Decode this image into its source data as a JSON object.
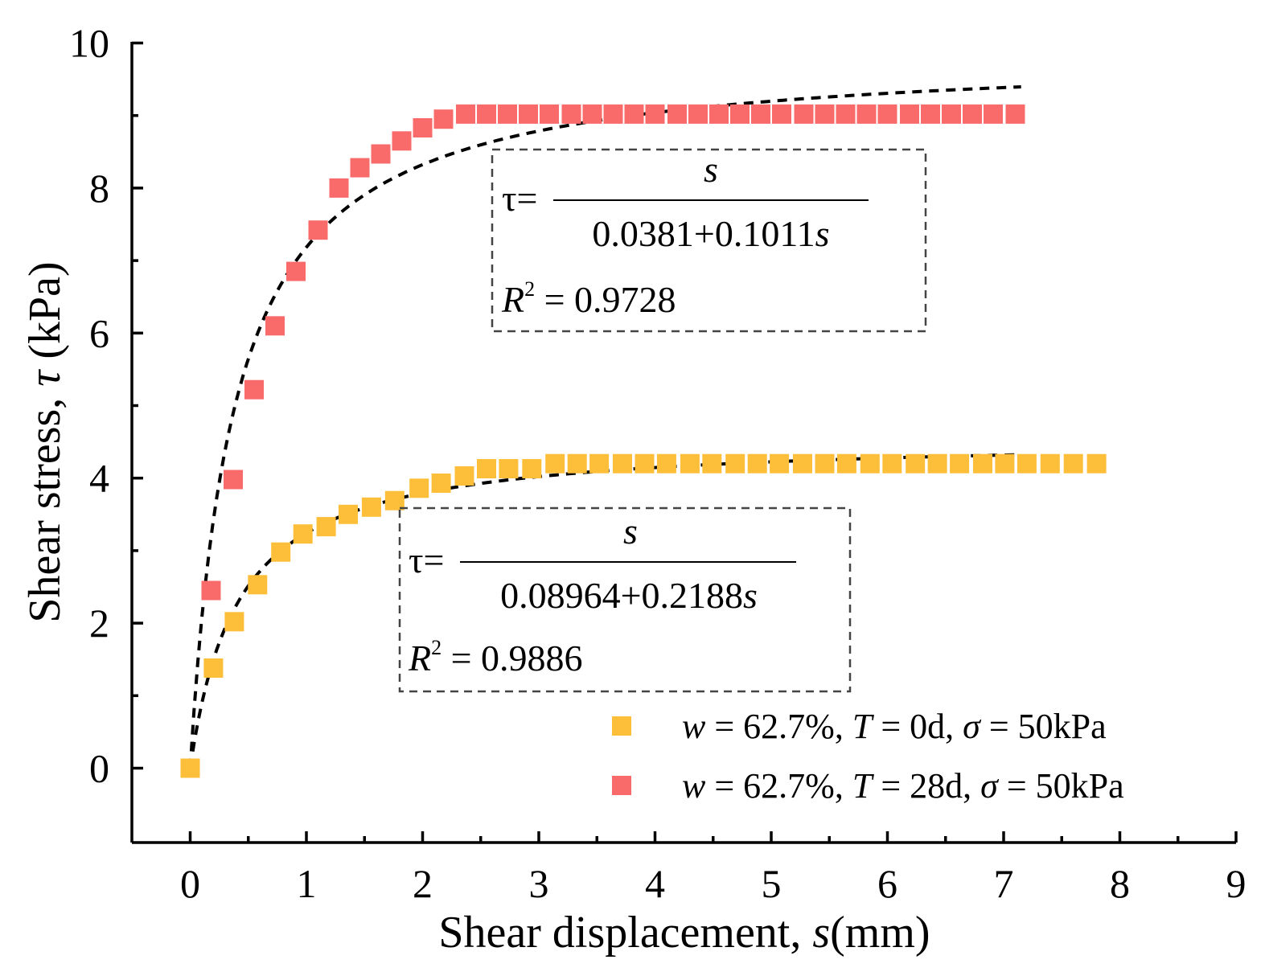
{
  "chart_data": {
    "type": "scatter",
    "xlabel_prefix": "Shear displacement, ",
    "xlabel_var": "s",
    "xlabel_unit": "(mm)",
    "ylabel_prefix": "Shear stress,  ",
    "ylabel_var": "τ",
    "ylabel_unit": " (kPa)",
    "xlim": [
      -0.5,
      9
    ],
    "ylim": [
      -1,
      10
    ],
    "xticks": [
      0,
      1,
      2,
      3,
      4,
      5,
      6,
      7,
      8,
      9
    ],
    "yticks": [
      0,
      2,
      4,
      6,
      8,
      10
    ],
    "series": [
      {
        "name": "T0",
        "legend": {
          "w": "w",
          "w_val": " = 62.7%, ",
          "T": "T",
          "T_val": " = 0d, ",
          "sigma": "σ",
          "sigma_val": " = 50kPa"
        },
        "color": "#FDBE3A",
        "x": [
          0,
          0.2,
          0.38,
          0.58,
          0.78,
          0.97,
          1.17,
          1.36,
          1.56,
          1.76,
          1.97,
          2.16,
          2.36,
          2.55,
          2.74,
          2.94,
          3.14,
          3.33,
          3.52,
          3.72,
          3.91,
          4.1,
          4.3,
          4.49,
          4.69,
          4.88,
          5.07,
          5.27,
          5.46,
          5.65,
          5.85,
          6.04,
          6.24,
          6.43,
          6.62,
          6.82,
          7.01,
          7.2,
          7.4,
          7.6,
          7.8
        ],
        "y": [
          0,
          1.38,
          2.02,
          2.53,
          2.98,
          3.23,
          3.33,
          3.5,
          3.6,
          3.69,
          3.86,
          3.93,
          4.03,
          4.13,
          4.13,
          4.13,
          4.2,
          4.2,
          4.2,
          4.2,
          4.2,
          4.2,
          4.2,
          4.2,
          4.2,
          4.2,
          4.2,
          4.2,
          4.2,
          4.2,
          4.2,
          4.2,
          4.2,
          4.2,
          4.2,
          4.2,
          4.2,
          4.2,
          4.2,
          4.2,
          4.2
        ],
        "fit": {
          "a": 0.08964,
          "b": 0.2188,
          "x_max": 7.15
        }
      },
      {
        "name": "T28",
        "legend": {
          "w": "w",
          "w_val": " = 62.7%, ",
          "T": "T",
          "T_val": " = 28d, ",
          "sigma": "σ",
          "sigma_val": " = 50kPa"
        },
        "color": "#F96B6B",
        "x": [
          0.18,
          0.37,
          0.55,
          0.73,
          0.91,
          1.1,
          1.28,
          1.46,
          1.64,
          1.82,
          2.0,
          2.18,
          2.37,
          2.55,
          2.73,
          2.91,
          3.09,
          3.28,
          3.46,
          3.64,
          3.82,
          4.0,
          4.19,
          4.37,
          4.55,
          4.73,
          4.91,
          5.09,
          5.28,
          5.46,
          5.64,
          5.82,
          6.0,
          6.19,
          6.37,
          6.55,
          6.73,
          6.91,
          7.1
        ],
        "y": [
          2.45,
          3.98,
          5.22,
          6.1,
          6.85,
          7.42,
          8.0,
          8.28,
          8.47,
          8.65,
          8.83,
          8.95,
          9.02,
          9.02,
          9.02,
          9.02,
          9.02,
          9.02,
          9.02,
          9.02,
          9.02,
          9.02,
          9.02,
          9.02,
          9.02,
          9.02,
          9.02,
          9.02,
          9.02,
          9.02,
          9.02,
          9.02,
          9.02,
          9.02,
          9.02,
          9.02,
          9.02,
          9.02,
          9.02
        ],
        "fit": {
          "a": 0.0381,
          "b": 0.1011,
          "x_max": 7.15
        }
      }
    ],
    "annotations": [
      {
        "tau_lhs": "τ=",
        "numerator": "s",
        "denominator_const": "0.0381+0.1011",
        "denominator_var": "s",
        "r2_label": "R",
        "r2_exp": "2",
        "r2_value": " = 0.9728"
      },
      {
        "tau_lhs": "τ=",
        "numerator": "s",
        "denominator_const": "0.08964+0.2188",
        "denominator_var": "s",
        "r2_label": "R",
        "r2_exp": "2",
        "r2_value": " = 0.9886"
      }
    ]
  }
}
